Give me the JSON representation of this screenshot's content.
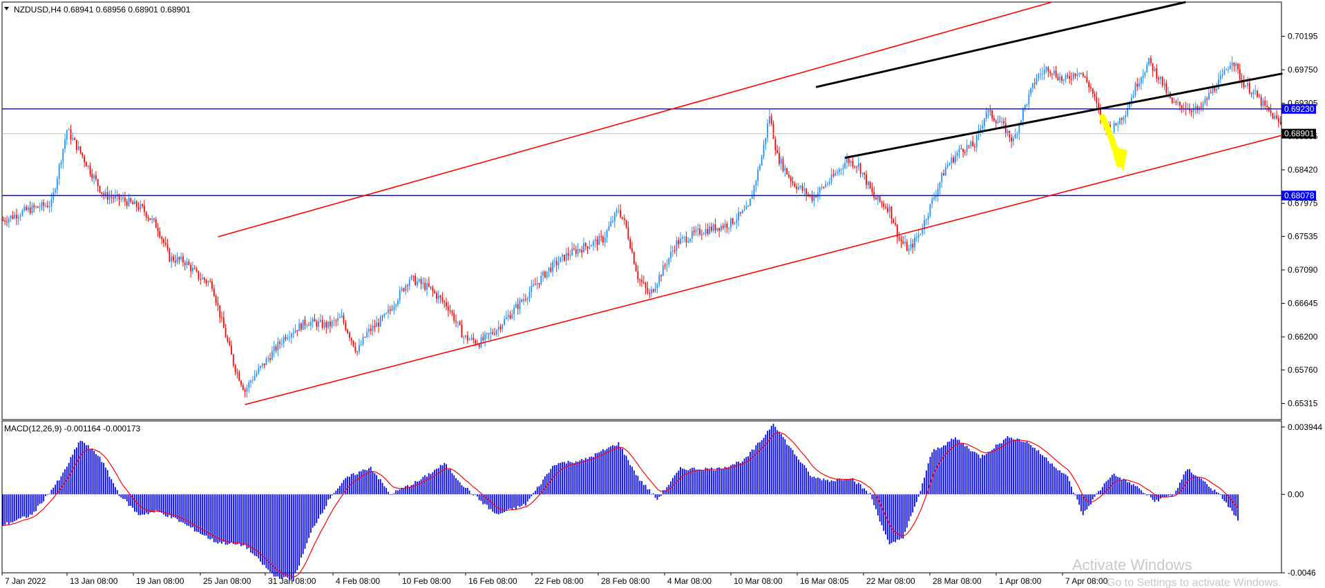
{
  "window": {
    "header": "NZDUSD,H4  0.68941 0.68956 0.68901 0.68901",
    "macd_header": "MACD(12,26,9) -0.001164 -0.000173",
    "dropdown_arrow": "triangle-down-icon"
  },
  "watermark": {
    "line1": "Activate Windows",
    "line2": "Go to Settings to activate Windows."
  },
  "chart_data": [
    {
      "type": "candlestick",
      "symbol": "NZDUSD",
      "timeframe": "H4",
      "ylim": [
        0.651,
        0.7065
      ],
      "y_ticks": [
        "0.70195",
        "0.69750",
        "0.69305",
        "0.68865",
        "0.68420",
        "0.67975",
        "0.67535",
        "0.67090",
        "0.66645",
        "0.66200",
        "0.65760",
        "0.65315"
      ],
      "x_ticks": [
        "7 Jan 2022",
        "13 Jan 08:00",
        "19 Jan 08:00",
        "25 Jan 08:00",
        "31 Jan 08:00",
        "4 Feb 08:00",
        "10 Feb 08:00",
        "16 Feb 08:00",
        "22 Feb 08:00",
        "28 Feb 08:00",
        "4 Mar 08:00",
        "10 Mar 08:00",
        "16 Mar 08:05",
        "22 Mar 08:00",
        "28 Mar 08:00",
        "1 Apr 08:00",
        "7 Apr 08:00"
      ],
      "horizontal_levels": [
        {
          "value": 0.6923,
          "label": "0.69230",
          "color": "#0000ff"
        },
        {
          "value": 0.68078,
          "label": "0.68078",
          "color": "#0000ff"
        }
      ],
      "current_price": {
        "value": 0.68901,
        "label": "0.68901"
      },
      "close_path": [
        [
          0,
          0.6775
        ],
        [
          12,
          0.6788
        ],
        [
          25,
          0.6797
        ],
        [
          33,
          0.6895
        ],
        [
          40,
          0.6865
        ],
        [
          52,
          0.6808
        ],
        [
          62,
          0.6802
        ],
        [
          72,
          0.679
        ],
        [
          80,
          0.6765
        ],
        [
          86,
          0.6725
        ],
        [
          94,
          0.672
        ],
        [
          101,
          0.67
        ],
        [
          108,
          0.669
        ],
        [
          113,
          0.664
        ],
        [
          119,
          0.6585
        ],
        [
          125,
          0.6548
        ],
        [
          128,
          0.6562
        ],
        [
          135,
          0.6585
        ],
        [
          146,
          0.6622
        ],
        [
          157,
          0.664
        ],
        [
          168,
          0.6635
        ],
        [
          175,
          0.6645
        ],
        [
          183,
          0.66
        ],
        [
          188,
          0.6625
        ],
        [
          198,
          0.6648
        ],
        [
          210,
          0.6698
        ],
        [
          220,
          0.6685
        ],
        [
          230,
          0.666
        ],
        [
          238,
          0.662
        ],
        [
          246,
          0.6612
        ],
        [
          254,
          0.6628
        ],
        [
          262,
          0.665
        ],
        [
          272,
          0.668
        ],
        [
          282,
          0.671
        ],
        [
          292,
          0.673
        ],
        [
          302,
          0.6742
        ],
        [
          310,
          0.675
        ],
        [
          318,
          0.679
        ],
        [
          322,
          0.6765
        ],
        [
          328,
          0.67
        ],
        [
          334,
          0.6675
        ],
        [
          340,
          0.6705
        ],
        [
          348,
          0.6745
        ],
        [
          360,
          0.676
        ],
        [
          375,
          0.677
        ],
        [
          385,
          0.679
        ],
        [
          392,
          0.686
        ],
        [
          396,
          0.6915
        ],
        [
          400,
          0.686
        ],
        [
          408,
          0.6825
        ],
        [
          418,
          0.6805
        ],
        [
          428,
          0.683
        ],
        [
          436,
          0.6855
        ],
        [
          442,
          0.6848
        ],
        [
          450,
          0.6805
        ],
        [
          458,
          0.679
        ],
        [
          463,
          0.675
        ],
        [
          468,
          0.6735
        ],
        [
          474,
          0.676
        ],
        [
          480,
          0.68
        ],
        [
          487,
          0.6845
        ],
        [
          495,
          0.687
        ],
        [
          502,
          0.6875
        ],
        [
          508,
          0.692
        ],
        [
          515,
          0.6905
        ],
        [
          522,
          0.688
        ],
        [
          527,
          0.692
        ],
        [
          534,
          0.6965
        ],
        [
          540,
          0.6978
        ],
        [
          548,
          0.696
        ],
        [
          556,
          0.6975
        ],
        [
          562,
          0.695
        ],
        [
          568,
          0.6905
        ],
        [
          573,
          0.6895
        ],
        [
          580,
          0.692
        ],
        [
          586,
          0.6958
        ],
        [
          592,
          0.6985
        ],
        [
          598,
          0.6962
        ],
        [
          604,
          0.693
        ],
        [
          612,
          0.6925
        ],
        [
          618,
          0.692
        ],
        [
          624,
          0.6945
        ],
        [
          630,
          0.6965
        ],
        [
          635,
          0.699
        ],
        [
          640,
          0.696
        ],
        [
          646,
          0.6945
        ],
        [
          652,
          0.6925
        ],
        [
          660,
          0.6902
        ]
      ],
      "projection_arrow_color": "#ffff00",
      "up_candle_color": "#1e90ff",
      "down_candle_color": "#ff0000",
      "trend_channel_color": "#ff0000",
      "inner_channel_color": "#000000"
    },
    {
      "type": "histogram",
      "indicator": "MACD(12,26,9)",
      "ylim": [
        -0.0046,
        0.0043
      ],
      "y_ticks": [
        "0.003944",
        "0.00",
        "-0.0046"
      ],
      "bar_color": "#0000ff",
      "signal_color": "#ff0000",
      "values_path": [
        [
          0,
          -0.0018
        ],
        [
          15,
          -0.0012
        ],
        [
          30,
          0.001
        ],
        [
          40,
          0.0032
        ],
        [
          50,
          0.0022
        ],
        [
          60,
          0.0
        ],
        [
          70,
          -0.0012
        ],
        [
          80,
          -0.001
        ],
        [
          90,
          -0.0015
        ],
        [
          110,
          -0.0028
        ],
        [
          125,
          -0.003
        ],
        [
          140,
          -0.0048
        ],
        [
          150,
          -0.005
        ],
        [
          160,
          -0.002
        ],
        [
          170,
          0.0
        ],
        [
          178,
          0.001
        ],
        [
          190,
          0.0016
        ],
        [
          200,
          0.0
        ],
        [
          215,
          0.0008
        ],
        [
          228,
          0.0018
        ],
        [
          238,
          0.0005
        ],
        [
          255,
          -0.0012
        ],
        [
          270,
          -0.0006
        ],
        [
          285,
          0.0018
        ],
        [
          300,
          0.002
        ],
        [
          318,
          0.003
        ],
        [
          328,
          0.001
        ],
        [
          338,
          -0.0003
        ],
        [
          350,
          0.0015
        ],
        [
          370,
          0.0015
        ],
        [
          383,
          0.002
        ],
        [
          392,
          0.0032
        ],
        [
          398,
          0.0042
        ],
        [
          405,
          0.003
        ],
        [
          418,
          0.001
        ],
        [
          428,
          0.0008
        ],
        [
          438,
          0.001
        ],
        [
          448,
          0.0
        ],
        [
          458,
          -0.003
        ],
        [
          465,
          -0.0025
        ],
        [
          472,
          -0.0005
        ],
        [
          480,
          0.0025
        ],
        [
          492,
          0.0033
        ],
        [
          505,
          0.0022
        ],
        [
          520,
          0.0034
        ],
        [
          530,
          0.003
        ],
        [
          540,
          0.002
        ],
        [
          550,
          0.001
        ],
        [
          558,
          -0.0012
        ],
        [
          565,
          0.0
        ],
        [
          573,
          0.0012
        ],
        [
          585,
          0.0005
        ],
        [
          595,
          -0.0004
        ],
        [
          605,
          0.0
        ],
        [
          612,
          0.0015
        ],
        [
          620,
          0.0008
        ],
        [
          630,
          -0.0002
        ],
        [
          638,
          -0.0015
        ]
      ]
    }
  ]
}
